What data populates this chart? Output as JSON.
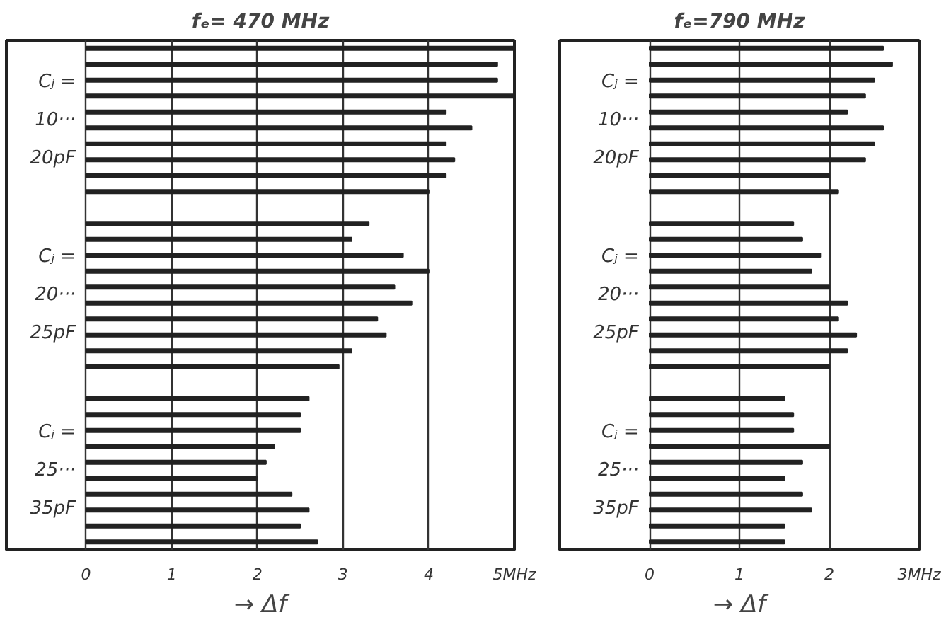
{
  "chart_data": [
    {
      "type": "bar",
      "orientation": "horizontal",
      "title": "fₑ= 470 MHz",
      "xlabel": "→ Δf",
      "categories": [
        null,
        null,
        null,
        null,
        null,
        null,
        null,
        null,
        null,
        null,
        null,
        null,
        null,
        null,
        null,
        null,
        null,
        null,
        null,
        null,
        null,
        null,
        null,
        null,
        null,
        null,
        null,
        null,
        null,
        null,
        null,
        null
      ],
      "values": [
        5.0,
        4.8,
        4.8,
        5.0,
        4.2,
        4.5,
        4.2,
        4.3,
        4.2,
        4.0,
        null,
        3.3,
        3.1,
        3.7,
        4.0,
        3.6,
        3.8,
        3.4,
        3.5,
        3.1,
        2.95,
        null,
        2.6,
        2.5,
        2.5,
        2.2,
        2.1,
        2.0,
        2.4,
        2.6,
        2.5,
        2.7
      ],
      "color": "#222222",
      "xlim": [
        -0.93,
        5.0
      ],
      "xticks": [
        0,
        1,
        2,
        3,
        4,
        {
          "value": 5,
          "label": "5MHz"
        }
      ],
      "grid": "x",
      "tick_labels": "x",
      "annotations": [
        "Cⱼ = 10··· 20pF",
        "Cⱼ = 20··· 25pF",
        "Cⱼ = 25··· 35pF"
      ]
    },
    {
      "type": "bar",
      "orientation": "horizontal",
      "title": "fₑ=790 MHz",
      "xlabel": "→ Δf",
      "categories": [
        null,
        null,
        null,
        null,
        null,
        null,
        null,
        null,
        null,
        null,
        null,
        null,
        null,
        null,
        null,
        null,
        null,
        null,
        null,
        null,
        null,
        null,
        null,
        null,
        null,
        null,
        null,
        null,
        null,
        null,
        null,
        null
      ],
      "values": [
        2.6,
        2.7,
        2.5,
        2.4,
        2.2,
        2.6,
        2.5,
        2.4,
        2.0,
        2.1,
        null,
        1.6,
        1.7,
        1.9,
        1.8,
        2.0,
        2.2,
        2.1,
        2.3,
        2.2,
        2.0,
        null,
        1.5,
        1.6,
        1.6,
        2.0,
        1.7,
        1.5,
        1.7,
        1.8,
        1.5,
        1.5
      ],
      "color": "#222222",
      "xlim": [
        -1.0,
        3.0
      ],
      "xticks": [
        0,
        1,
        2,
        {
          "value": 3,
          "label": "3MHz"
        }
      ],
      "grid": "x",
      "tick_labels": "x",
      "annotations": [
        "Cⱼ = 10··· 20pF",
        "Cⱼ = 20··· 25pF",
        "Cⱼ = 25··· 35pF"
      ]
    }
  ]
}
